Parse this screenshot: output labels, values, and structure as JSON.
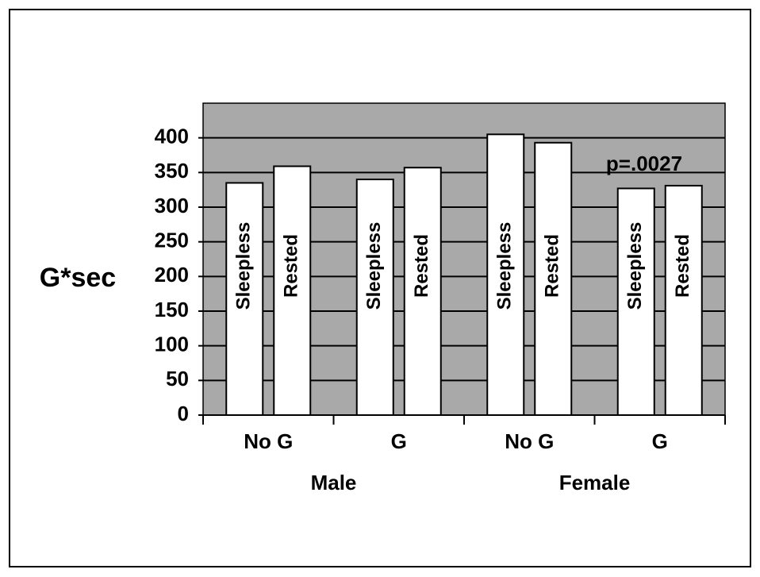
{
  "chart_data": {
    "type": "bar",
    "y_label": "G*sec",
    "annotation": "p=.0027",
    "categories": [
      "No G",
      "G",
      "No G",
      "G"
    ],
    "groups": [
      "Male",
      "Female"
    ],
    "series": [
      {
        "name": "Sleepless",
        "color": "#ffffff",
        "values": [
          335,
          340,
          405,
          327
        ]
      },
      {
        "name": "Rested",
        "color": "#ffffff",
        "values": [
          359,
          357,
          393,
          331
        ]
      }
    ],
    "ylim": [
      0,
      450
    ],
    "yticks": [
      0,
      50,
      100,
      150,
      200,
      250,
      300,
      350,
      400
    ],
    "grid": true,
    "plot_background": "#a9a9a9"
  }
}
